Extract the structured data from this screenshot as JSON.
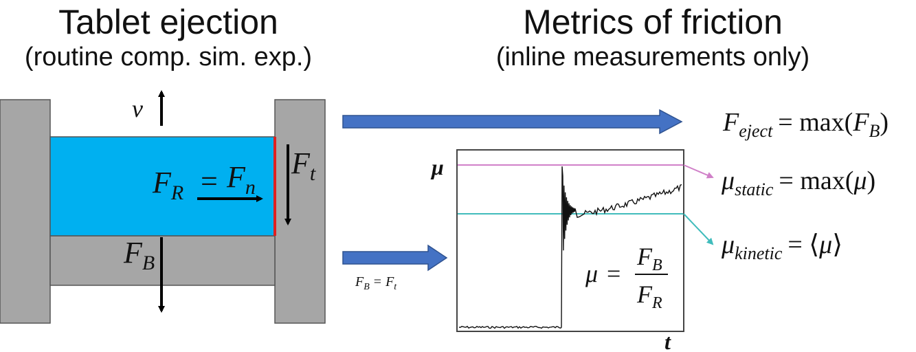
{
  "left_panel": {
    "title": "Tablet ejection",
    "subtitle": "(routine comp. sim. exp.)",
    "labels": {
      "velocity": "v",
      "radial_force": "F",
      "radial_force_sub": "R",
      "equals": "=",
      "normal_force": "F",
      "normal_force_sub": "n",
      "tangential_force": "F",
      "tangential_force_sub": "t",
      "bottom_force": "F",
      "bottom_force_sub": "B"
    },
    "colors": {
      "tablet": "#00b0f0",
      "die": "#a6a6a6",
      "contact": "#e02020"
    }
  },
  "right_panel": {
    "title": "Metrics of friction",
    "subtitle": "(inline measurements only)",
    "arrow_label": {
      "f": "F",
      "b": "B",
      "eq": "=",
      "f2": "F",
      "t": "t"
    },
    "plot": {
      "y_axis_label": "μ",
      "x_axis_label": "t",
      "formula": {
        "mu": "μ",
        "eq": "=",
        "num_f": "F",
        "num_sub": "B",
        "den_f": "F",
        "den_sub": "R"
      },
      "static_line_color": "#d080c8",
      "kinetic_line_color": "#40bcbc"
    },
    "metrics": {
      "eject": {
        "symbol": "F",
        "sub": "eject",
        "rhs": "= max(",
        "arg": "F",
        "arg_sub": "B",
        "close": ")"
      },
      "static": {
        "symbol": "μ",
        "sub": "static",
        "rhs": "= max(",
        "arg": "μ",
        "close": ")"
      },
      "kinetic": {
        "symbol": "μ",
        "sub": "kinetic",
        "rhs": "= ⟨",
        "arg": "μ",
        "close": "⟩"
      }
    },
    "colors": {
      "arrow": "#4472c4",
      "arrow_edge": "#2f528f"
    }
  }
}
